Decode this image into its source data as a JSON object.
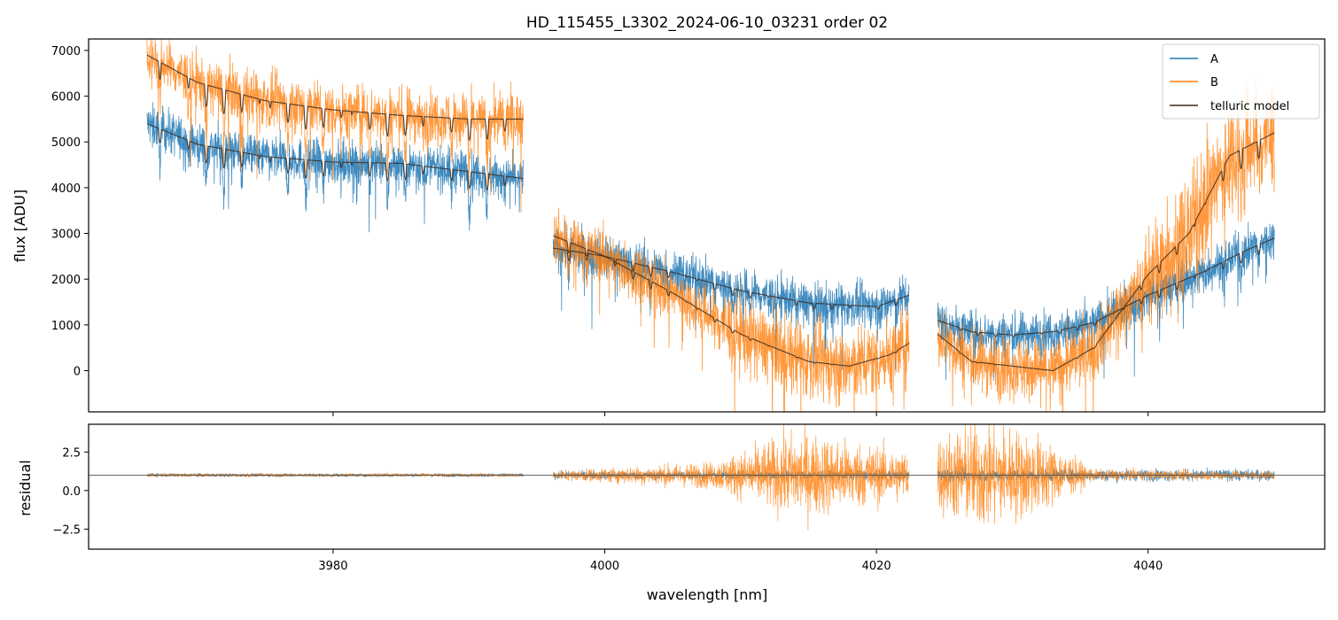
{
  "chart_data": [
    {
      "panel": "top",
      "type": "line",
      "title": "HD_115455_L3302_2024-06-10_03231  order 02",
      "xlabel": "",
      "ylabel": "flux [ADU]",
      "xlim": [
        3962,
        4053
      ],
      "ylim": [
        -900,
        7250
      ],
      "yticks": [
        0,
        1000,
        2000,
        3000,
        4000,
        5000,
        6000,
        7000
      ],
      "ytick_labels": [
        "0",
        "1000",
        "2000",
        "3000",
        "4000",
        "5000",
        "6000",
        "7000"
      ],
      "xticks": [
        3980,
        4000,
        4020,
        4040
      ],
      "legend_position": "upper right",
      "legend": [
        "A",
        "B",
        "telluric model"
      ],
      "colors": {
        "A": "#1f77b4",
        "B": "#ff7f0e",
        "telluric": "#3b2a1f"
      },
      "segments": [
        {
          "x_start": 3966.3,
          "x_end": 3994.0
        },
        {
          "x_start": 3996.2,
          "x_end": 4022.4
        },
        {
          "x_start": 4024.5,
          "x_end": 4049.3
        }
      ],
      "series": [
        {
          "name": "A",
          "continuum": [
            [
              3966.3,
              5400
            ],
            [
              3970,
              4950
            ],
            [
              3975,
              4680
            ],
            [
              3980,
              4560
            ],
            [
              3985,
              4530
            ],
            [
              3990,
              4350
            ],
            [
              3994.0,
              4200
            ],
            [
              3996.2,
              2680
            ],
            [
              4000,
              2500
            ],
            [
              4005,
              2150
            ],
            [
              4010,
              1750
            ],
            [
              4015,
              1480
            ],
            [
              4020,
              1400
            ],
            [
              4022.4,
              1650
            ],
            [
              4024.5,
              1100
            ],
            [
              4027,
              850
            ],
            [
              4030,
              780
            ],
            [
              4033,
              850
            ],
            [
              4036,
              1050
            ],
            [
              4040,
              1650
            ],
            [
              4044,
              2150
            ],
            [
              4047,
              2600
            ],
            [
              4049.3,
              2900
            ]
          ],
          "noise": 600
        },
        {
          "name": "B",
          "continuum": [
            [
              3966.3,
              6900
            ],
            [
              3970,
              6300
            ],
            [
              3975,
              5900
            ],
            [
              3980,
              5700
            ],
            [
              3985,
              5580
            ],
            [
              3990,
              5500
            ],
            [
              3994.0,
              5500
            ],
            [
              3996.2,
              2950
            ],
            [
              4000,
              2500
            ],
            [
              4005,
              1700
            ],
            [
              4010,
              800
            ],
            [
              4015,
              200
            ],
            [
              4018,
              100
            ],
            [
              4021,
              350
            ],
            [
              4022.4,
              600
            ],
            [
              4024.5,
              800
            ],
            [
              4027,
              200
            ],
            [
              4030,
              100
            ],
            [
              4033,
              0
            ],
            [
              4036,
              500
            ],
            [
              4040,
              2100
            ],
            [
              4043,
              3000
            ],
            [
              4046,
              4700
            ],
            [
              4049.3,
              5200
            ]
          ],
          "noise": 750
        },
        {
          "name": "telluric model",
          "description_values": "smooth model tracing each trace's continuum with absorption dips"
        }
      ]
    },
    {
      "panel": "bottom",
      "type": "line",
      "title": "",
      "xlabel": "wavelength [nm]",
      "ylabel": "residual",
      "xlim": [
        3962,
        4053
      ],
      "ylim": [
        -3.8,
        4.3
      ],
      "yticks": [
        -2.5,
        0.0,
        2.5
      ],
      "ytick_labels": [
        "−2.5",
        "0.0",
        "2.5"
      ],
      "xticks": [
        3980,
        4000,
        4020,
        4040
      ],
      "xtick_labels": [
        "3980",
        "4000",
        "4020",
        "4040"
      ],
      "reference_line": 1.0,
      "series": [
        {
          "name": "A",
          "center": 1.0,
          "spread": [
            [
              3966.3,
              0.15
            ],
            [
              3994.0,
              0.15
            ],
            [
              3996.2,
              0.35
            ],
            [
              4022.4,
              0.45
            ],
            [
              4024.5,
              0.6
            ],
            [
              4049.3,
              0.5
            ]
          ]
        },
        {
          "name": "B",
          "center": 1.0,
          "spread": [
            [
              3966.3,
              0.15
            ],
            [
              3994.0,
              0.15
            ],
            [
              3996.2,
              0.4
            ],
            [
              4008,
              1.2
            ],
            [
              4014,
              4.0
            ],
            [
              4022.4,
              2.2
            ],
            [
              4024.5,
              3.5
            ],
            [
              4028,
              5.0
            ],
            [
              4032,
              3.5
            ],
            [
              4036,
              0.5
            ],
            [
              4049.3,
              0.4
            ]
          ]
        }
      ]
    }
  ]
}
